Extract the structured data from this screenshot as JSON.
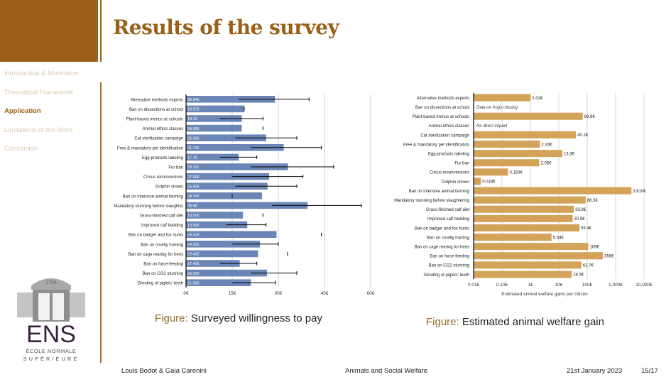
{
  "slide": {
    "title": "Results of the survey",
    "nav": [
      {
        "label": "Introduction & Motivation",
        "active": false
      },
      {
        "label": "Theoretical Framework",
        "active": false
      },
      {
        "label": "Application",
        "active": true
      },
      {
        "label": "Limitations of the Work",
        "active": false
      },
      {
        "label": "Conclusion",
        "active": false
      }
    ],
    "logo": {
      "year": "1794",
      "name": "ENS",
      "line1": "ÉCOLE NORMALE",
      "line2": "SUPÉRIEURE"
    },
    "captions": [
      {
        "prefix": "Figure:",
        "text": "Surveyed willingness to pay"
      },
      {
        "prefix": "Figure:",
        "text": "Estimated animal welfare gain"
      }
    ],
    "footer": {
      "authors": "Louis Bodot & Gaia Carenini",
      "talk": "Animals and Social Welfare",
      "date": "21st January 2023",
      "page": "15/17"
    },
    "colors": {
      "accent": "#9a5f18",
      "bar_left": "#6b86b6",
      "bar_right": "#d4a35a"
    }
  },
  "chart_data": [
    {
      "type": "bar",
      "orientation": "horizontal",
      "title": "Surveyed willingness to pay",
      "xlabel": "",
      "xlim": [
        0,
        60
      ],
      "xticks": [
        "0€",
        "15€",
        "30€",
        "45€",
        "60€"
      ],
      "xtick_values": [
        0,
        15,
        30,
        45,
        60
      ],
      "grid": true,
      "categories": [
        "Alternative methods experts",
        "Ban on dissections at school",
        "Plant-based menus at schools",
        "Animal ethics classes",
        "Cat sterilization campaign",
        "Free & mandatory pet identification",
        "Egg-products labeling",
        "Fur ban",
        "Circus reconversions",
        "Dolphin shows",
        "Ban on intensive animal farming",
        "Mandatory stunning before slaughter",
        "Grass-finished calf diet",
        "Improved calf bedding",
        "Ban on badger and fox hunts",
        "Ban on cruelty hunting",
        "Ban on cage rearing for hens",
        "Ban on force-feeding",
        "Ban on CO2 stunning",
        "Grinding of piglets' teeth"
      ],
      "values": [
        28.94,
        18.97,
        18.1,
        18.09,
        26.03,
        31.73,
        17.1,
        33.11,
        27.0,
        26.5,
        24.7,
        39.5,
        18.5,
        19.9,
        29.41,
        24.02,
        23.42,
        17.45,
        26.29,
        21.09
      ],
      "value_labels": [
        "28.94€",
        "18.97€",
        "18.1€",
        "18.09€",
        "26.03€",
        "31.73€",
        "17.1€",
        "33.11€",
        "27.00€",
        "26.50€",
        "24.70€",
        "39.5€",
        "18.50€",
        "19.90€",
        "29.41€",
        "24.02€",
        "23.42€",
        "17.45€",
        "26.29€",
        "21.09€"
      ],
      "error_low": [
        17,
        18.9,
        11,
        null,
        16,
        21,
        11,
        21,
        15,
        16,
        15,
        28,
        null,
        13,
        null,
        15,
        null,
        11,
        21,
        15
      ],
      "error_high": [
        40,
        18.9,
        25,
        25,
        36,
        44,
        23,
        48,
        38,
        36,
        15,
        57,
        25,
        26,
        44,
        30,
        33,
        23,
        36,
        29
      ]
    },
    {
      "type": "bar",
      "orientation": "horizontal",
      "scale": "log",
      "title": "Estimated animal welfare gain",
      "xlabel": "Estimated animal welfare gains per citizen",
      "xlim": [
        0.01,
        10000
      ],
      "xticks": [
        "0.01€",
        "0.10€",
        "1€",
        "10€",
        "100€",
        "1,000€",
        "10,000€"
      ],
      "xtick_values": [
        0.01,
        0.1,
        1,
        10,
        100,
        1000,
        10000
      ],
      "grid": true,
      "categories": [
        "Alternative methods experts",
        "Ban on dissections at school",
        "Plant-based menus at schools",
        "Animal ethics classes",
        "Cat sterilization campaign",
        "Free & mandatory pet identification",
        "Egg-products labeling",
        "Fur ban",
        "Circus reconversions",
        "Dolphin shows",
        "Ban on intensive animal farming",
        "Mandatory stunning before slaughtering",
        "Grass-finished calf diet",
        "Improved calf bedding",
        "Ban on badger and fox hunts",
        "Ban on cruelty hunting",
        "Ban on cage rearing for hens",
        "Ban on force-feeding",
        "Ban on CO2 stunning",
        "Grinding of piglets' teeth"
      ],
      "values": [
        1.02,
        null,
        69.6,
        null,
        40.2,
        2.16,
        13.3,
        2.05,
        0.163,
        0.018,
        3610,
        88.3,
        33.8,
        30.8,
        53.4,
        5.54,
        109,
        356,
        62.7,
        28.5
      ],
      "value_labels": [
        "1.02€",
        "Data on frogs missing",
        "69.6€",
        "No direct impact",
        "40.2€",
        "2.16€",
        "13.3€",
        "2.05€",
        "0.163€",
        "0.018€",
        "3,610€",
        "88.3€",
        "33.8€",
        "30.8€",
        "53.4€",
        "5.54€",
        "109€",
        "356€",
        "62.7€",
        "28.5€"
      ]
    }
  ]
}
